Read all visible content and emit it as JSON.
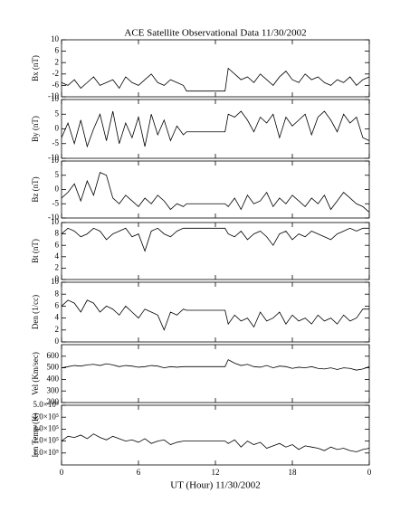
{
  "chart_data": [
    {
      "type": "line",
      "title": "ACE Satellite Observational Data   11/30/2002",
      "ylabel": "Bx (nT)",
      "color": "#000000",
      "xlim": [
        0,
        24
      ],
      "ylim": [
        -10,
        10
      ],
      "yticks": [
        -10,
        -6,
        -2,
        2,
        6,
        10
      ],
      "x": [
        0,
        0.5,
        1,
        1.5,
        2,
        2.5,
        3,
        3.5,
        4,
        4.5,
        5,
        5.5,
        6,
        6.5,
        7,
        7.5,
        8,
        8.5,
        9,
        9.5,
        9.75,
        12.75,
        13,
        13.5,
        14,
        14.5,
        15,
        15.5,
        16,
        16.5,
        17,
        17.5,
        18,
        18.5,
        19,
        19.5,
        20,
        20.5,
        21,
        21.5,
        22,
        22.5,
        23,
        23.5,
        24
      ],
      "values": [
        -5,
        -6,
        -4,
        -7,
        -5,
        -3,
        -6,
        -5,
        -4,
        -7,
        -3,
        -5,
        -6,
        -4,
        -2,
        -5,
        -6,
        -4,
        -5,
        -6,
        -8,
        -8,
        0,
        -2,
        -4,
        -3,
        -5,
        -2,
        -4,
        -6,
        -3,
        -1,
        -4,
        -5,
        -2,
        -4,
        -3,
        -5,
        -6,
        -4,
        -5,
        -3,
        -6,
        -4,
        -3
      ]
    },
    {
      "type": "line",
      "ylabel": "By (nT)",
      "color": "#000000",
      "xlim": [
        0,
        24
      ],
      "ylim": [
        -10,
        10
      ],
      "yticks": [
        -10,
        -5,
        0,
        5,
        10
      ],
      "x": [
        0,
        0.5,
        1,
        1.5,
        2,
        2.5,
        3,
        3.5,
        4,
        4.5,
        5,
        5.5,
        6,
        6.5,
        7,
        7.5,
        8,
        8.5,
        9,
        9.5,
        9.75,
        12.75,
        13,
        13.5,
        14,
        14.5,
        15,
        15.5,
        16,
        16.5,
        17,
        17.5,
        18,
        18.5,
        19,
        19.5,
        20,
        20.5,
        21,
        21.5,
        22,
        22.5,
        23,
        23.5,
        24
      ],
      "values": [
        -3,
        2,
        -5,
        3,
        -6,
        0,
        5,
        -4,
        6,
        -5,
        2,
        -3,
        4,
        -6,
        5,
        -2,
        3,
        -4,
        1,
        -2,
        -1,
        -1,
        5,
        4,
        6,
        3,
        -1,
        4,
        2,
        5,
        -3,
        4,
        1,
        3,
        5,
        -2,
        4,
        6,
        3,
        -1,
        5,
        2,
        4,
        -3,
        -4
      ]
    },
    {
      "type": "line",
      "ylabel": "Bz (nT)",
      "color": "#000000",
      "xlim": [
        0,
        24
      ],
      "ylim": [
        -10,
        10
      ],
      "yticks": [
        -10,
        -5,
        0,
        5,
        10
      ],
      "x": [
        0,
        0.5,
        1,
        1.5,
        2,
        2.5,
        3,
        3.5,
        4,
        4.5,
        5,
        5.5,
        6,
        6.5,
        7,
        7.5,
        8,
        8.5,
        9,
        9.5,
        9.75,
        12.75,
        13,
        13.5,
        14,
        14.5,
        15,
        15.5,
        16,
        16.5,
        17,
        17.5,
        18,
        18.5,
        19,
        19.5,
        20,
        20.5,
        21,
        21.5,
        22,
        22.5,
        23,
        23.5,
        24
      ],
      "values": [
        -3,
        -1,
        2,
        -4,
        3,
        -2,
        6,
        5,
        -3,
        -5,
        -2,
        -4,
        -6,
        -3,
        -5,
        -2,
        -4,
        -7,
        -5,
        -6,
        -5,
        -5,
        -6,
        -3,
        -7,
        -2,
        -5,
        -4,
        -1,
        -6,
        -3,
        -5,
        -2,
        -4,
        -6,
        -3,
        -5,
        -2,
        -7,
        -4,
        -1,
        -3,
        -5,
        -6,
        -8
      ]
    },
    {
      "type": "line",
      "ylabel": "Bt (nT)",
      "color": "#000000",
      "xlim": [
        0,
        24
      ],
      "ylim": [
        0,
        10
      ],
      "yticks": [
        0,
        2,
        4,
        6,
        8,
        10
      ],
      "x": [
        0,
        0.5,
        1,
        1.5,
        2,
        2.5,
        3,
        3.5,
        4,
        4.5,
        5,
        5.5,
        6,
        6.5,
        7,
        7.5,
        8,
        8.5,
        9,
        9.5,
        9.75,
        12.75,
        13,
        13.5,
        14,
        14.5,
        15,
        15.5,
        16,
        16.5,
        17,
        17.5,
        18,
        18.5,
        19,
        19.5,
        20,
        20.5,
        21,
        21.5,
        22,
        22.5,
        23,
        23.5,
        24
      ],
      "values": [
        8,
        9,
        8.5,
        7.5,
        8,
        9,
        8.5,
        7,
        8,
        8.5,
        9,
        7.5,
        8,
        5,
        8.5,
        9,
        8,
        7.5,
        8.5,
        9,
        9,
        9,
        8,
        7.5,
        8.5,
        7,
        8,
        8.5,
        7.5,
        6,
        8,
        8.5,
        7,
        8,
        7.5,
        8.5,
        8,
        7.5,
        7,
        8,
        8.5,
        9,
        8.5,
        9,
        9
      ]
    },
    {
      "type": "line",
      "ylabel": "Den (1/cc)",
      "color": "#000000",
      "xlim": [
        0,
        24
      ],
      "ylim": [
        0,
        10
      ],
      "yticks": [
        0,
        2,
        4,
        6,
        8,
        10
      ],
      "x": [
        0,
        0.5,
        1,
        1.5,
        2,
        2.5,
        3,
        3.5,
        4,
        4.5,
        5,
        5.5,
        6,
        6.5,
        7,
        7.5,
        8,
        8.5,
        9,
        9.5,
        9.75,
        12.75,
        13,
        13.5,
        14,
        14.5,
        15,
        15.5,
        16,
        16.5,
        17,
        17.5,
        18,
        18.5,
        19,
        19.5,
        20,
        20.5,
        21,
        21.5,
        22,
        22.5,
        23,
        23.5,
        24
      ],
      "values": [
        6,
        7,
        6.5,
        5,
        7,
        6.5,
        5,
        6,
        5.5,
        4.5,
        6,
        5,
        4,
        5.5,
        5,
        4.5,
        2,
        5,
        4.5,
        5.5,
        5.3,
        5.3,
        3,
        4.5,
        3.5,
        4,
        2.5,
        5,
        3.5,
        4,
        5,
        3,
        4.5,
        3.5,
        4,
        3,
        4.5,
        3.5,
        4,
        3,
        4.5,
        3.5,
        4,
        5.5,
        5.5
      ]
    },
    {
      "type": "line",
      "ylabel": "Vel (Km/sec)",
      "color": "#000000",
      "xlim": [
        0,
        24
      ],
      "ylim": [
        200,
        700
      ],
      "yticks": [
        200,
        300,
        400,
        500,
        600
      ],
      "x": [
        0,
        0.5,
        1,
        1.5,
        2,
        2.5,
        3,
        3.5,
        4,
        4.5,
        5,
        5.5,
        6,
        6.5,
        7,
        7.5,
        8,
        8.5,
        9,
        9.5,
        9.75,
        12.75,
        13,
        13.5,
        14,
        14.5,
        15,
        15.5,
        16,
        16.5,
        17,
        17.5,
        18,
        18.5,
        19,
        19.5,
        20,
        20.5,
        21,
        21.5,
        22,
        22.5,
        23,
        23.5,
        24
      ],
      "values": [
        500,
        510,
        520,
        515,
        525,
        530,
        520,
        535,
        525,
        510,
        520,
        515,
        505,
        510,
        520,
        515,
        500,
        510,
        505,
        510,
        510,
        510,
        570,
        540,
        520,
        530,
        510,
        505,
        520,
        500,
        515,
        510,
        495,
        505,
        500,
        510,
        495,
        490,
        500,
        485,
        500,
        495,
        480,
        490,
        510
      ]
    },
    {
      "type": "line",
      "ylabel": "Ion Temp (K)",
      "xlabel": "UT (Hour)   11/30/2002",
      "color": "#000000",
      "xlim": [
        0,
        24
      ],
      "ylim": [
        0,
        500000
      ],
      "yticks": [
        {
          "value": 100000,
          "label": "1.0×10⁵"
        },
        {
          "value": 200000,
          "label": "2.0×10⁵"
        },
        {
          "value": 300000,
          "label": "3.0×10⁵"
        },
        {
          "value": 400000,
          "label": "4.0×10⁵"
        },
        {
          "value": 500000,
          "label": "5.0×10⁵"
        }
      ],
      "xticks": [
        0,
        6,
        12,
        18,
        {
          "value": 24,
          "label": "0"
        }
      ],
      "x": [
        0,
        0.5,
        1,
        1.5,
        2,
        2.5,
        3,
        3.5,
        4,
        4.5,
        5,
        5.5,
        6,
        6.5,
        7,
        7.5,
        8,
        8.5,
        9,
        9.5,
        9.75,
        12.75,
        13,
        13.5,
        14,
        14.5,
        15,
        15.5,
        16,
        16.5,
        17,
        17.5,
        18,
        18.5,
        19,
        19.5,
        20,
        20.5,
        21,
        21.5,
        22,
        22.5,
        23,
        23.5,
        24
      ],
      "values": [
        200000,
        240000,
        230000,
        250000,
        220000,
        260000,
        230000,
        210000,
        240000,
        220000,
        200000,
        210000,
        190000,
        220000,
        180000,
        200000,
        210000,
        170000,
        190000,
        200000,
        200000,
        200000,
        180000,
        210000,
        150000,
        200000,
        170000,
        190000,
        140000,
        160000,
        180000,
        150000,
        170000,
        130000,
        160000,
        150000,
        140000,
        120000,
        150000,
        130000,
        140000,
        120000,
        110000,
        130000,
        140000
      ]
    }
  ]
}
